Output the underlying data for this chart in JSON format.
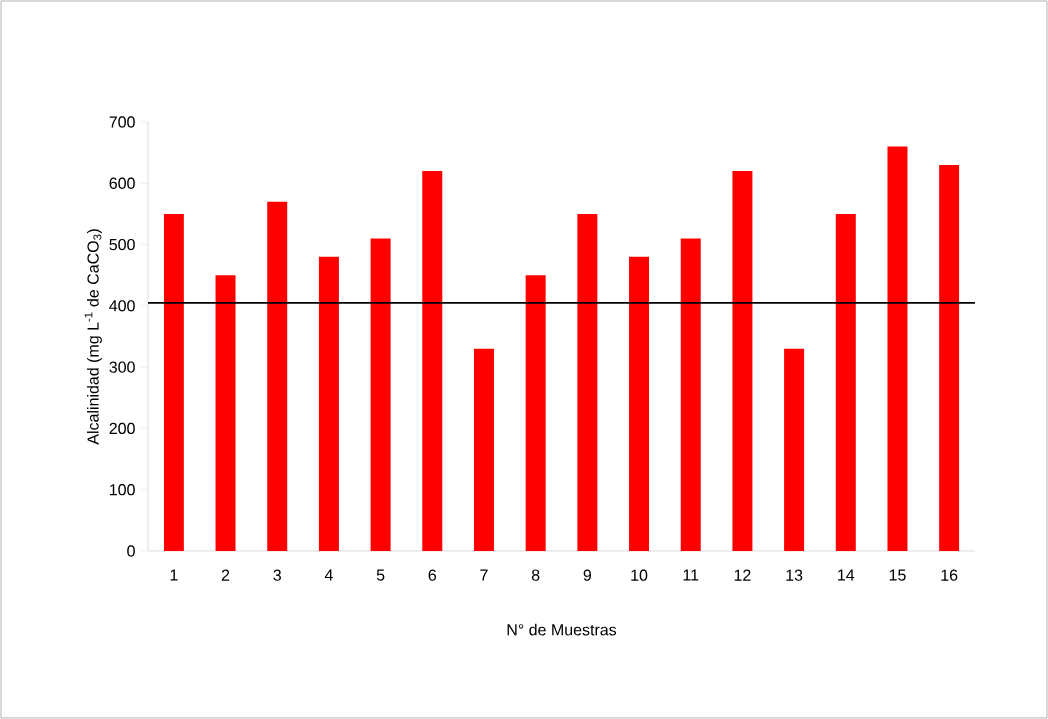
{
  "chart_data": {
    "type": "bar",
    "xlabel": "N° de Muestras",
    "ylabel": "Alcalinidad (mg L$^{-1}$ de CaCO$_{3}$)",
    "categories": [
      "1",
      "2",
      "3",
      "4",
      "5",
      "6",
      "7",
      "8",
      "9",
      "10",
      "11",
      "12",
      "13",
      "14",
      "15",
      "16"
    ],
    "values": [
      550,
      450,
      570,
      480,
      510,
      620,
      330,
      450,
      550,
      480,
      510,
      620,
      330,
      550,
      660,
      630
    ],
    "color": "#ff0000",
    "ylim": [
      0,
      700
    ],
    "yticks": [
      0,
      100,
      200,
      300,
      400,
      500,
      600,
      700
    ],
    "ref_lines": [
      {
        "axis": "y",
        "value": 405,
        "color": "#000000"
      }
    ],
    "grid": false
  }
}
